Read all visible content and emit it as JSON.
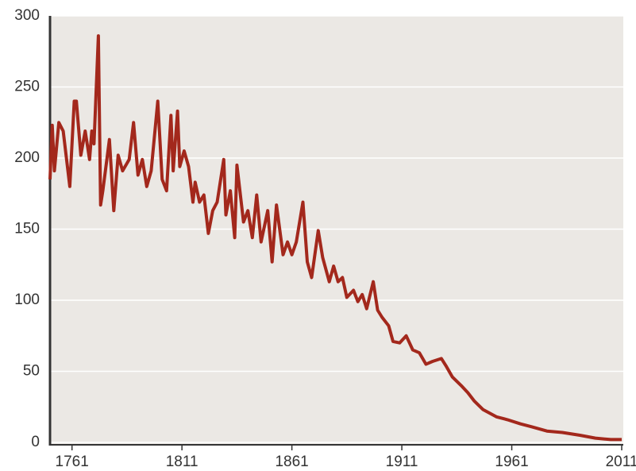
{
  "chart_data": {
    "type": "line",
    "x": [
      1751,
      1752,
      1753,
      1755,
      1757,
      1760,
      1762,
      1763,
      1765,
      1767,
      1769,
      1770,
      1771,
      1773,
      1774,
      1775,
      1778,
      1780,
      1782,
      1784,
      1787,
      1789,
      1791,
      1793,
      1795,
      1797,
      1800,
      1802,
      1804,
      1806,
      1807,
      1809,
      1810,
      1812,
      1814,
      1816,
      1817,
      1819,
      1821,
      1823,
      1825,
      1827,
      1830,
      1831,
      1833,
      1835,
      1836,
      1839,
      1841,
      1843,
      1845,
      1847,
      1850,
      1852,
      1854,
      1857,
      1859,
      1861,
      1863,
      1866,
      1868,
      1870,
      1873,
      1875,
      1878,
      1880,
      1882,
      1884,
      1886,
      1889,
      1891,
      1893,
      1895,
      1898,
      1900,
      1902,
      1905,
      1907,
      1910,
      1913,
      1916,
      1919,
      1922,
      1925,
      1929,
      1931,
      1934,
      1938,
      1941,
      1944,
      1948,
      1954,
      1959,
      1965,
      1970,
      1977,
      1984,
      1992,
      1999,
      2006,
      2011
    ],
    "series": [
      {
        "color": "#a3281c",
        "values": [
          185,
          223,
          191,
          225,
          219,
          180,
          240,
          240,
          202,
          219,
          199,
          219,
          210,
          286,
          167,
          177,
          213,
          163,
          202,
          191,
          199,
          225,
          188,
          199,
          180,
          191,
          240,
          185,
          177,
          230,
          191,
          233,
          194,
          205,
          194,
          169,
          183,
          169,
          174,
          147,
          163,
          169,
          199,
          160,
          177,
          144,
          195,
          155,
          163,
          144,
          174,
          141,
          163,
          127,
          167,
          132,
          141,
          132,
          141,
          169,
          127,
          116,
          149,
          130,
          113,
          124,
          113,
          116,
          102,
          107,
          99,
          104,
          94,
          113,
          93,
          88,
          82,
          71,
          70,
          75,
          65,
          63,
          55,
          57,
          59,
          54,
          46,
          40,
          35,
          29,
          23,
          18,
          16,
          13,
          11,
          8,
          7,
          5,
          3,
          2,
          2
        ]
      }
    ],
    "xlim": [
      1751,
      2011
    ],
    "xticks": [
      1761,
      1811,
      1861,
      1911,
      1961,
      2011
    ],
    "ylim": [
      0,
      300
    ],
    "yticks": [
      0,
      50,
      100,
      150,
      200,
      250,
      300
    ],
    "grid": true
  }
}
